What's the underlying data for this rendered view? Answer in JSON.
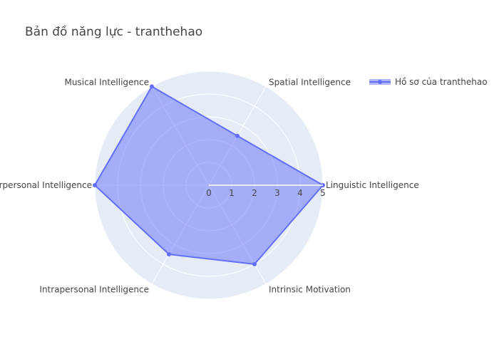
{
  "chart_data": {
    "type": "radar",
    "title": "Bản đồ năng lực - tranthehao",
    "axes": [
      "Linguistic Intelligence",
      "Spatial Intelligence",
      "Musical Intelligence",
      "Interpersonal Intelligence",
      "Intrapersonal Intelligence",
      "Intrinsic Motivation"
    ],
    "radial_range": [
      0,
      5
    ],
    "radial_ticks": [
      "0",
      "1",
      "2",
      "3",
      "4",
      "5"
    ],
    "series": [
      {
        "name": "Hồ sơ của tranthehao",
        "values": [
          5,
          2.5,
          5,
          5,
          3.5,
          4
        ]
      }
    ],
    "grid": true,
    "legend_position": "top-right",
    "colors": {
      "line": "#636efa",
      "fill": "#636efa",
      "polar_bg": "#e5ecf6",
      "grid": "#ffffff"
    }
  }
}
